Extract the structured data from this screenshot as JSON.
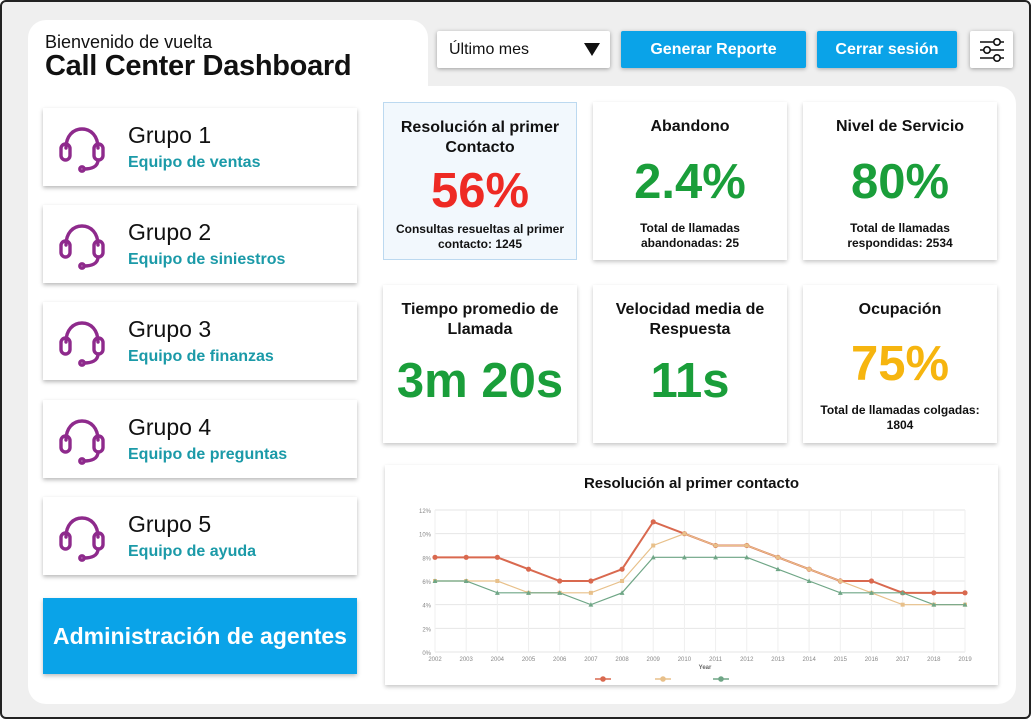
{
  "header": {
    "welcome": "Bienvenido de vuelta",
    "title": "Call Center Dashboard"
  },
  "toolbar": {
    "period_selected": "Último mes",
    "report_label": "Generar Reporte",
    "logout_label": "Cerrar sesión",
    "filter_icon": "sliders-icon"
  },
  "groups": [
    {
      "name": "Grupo 1",
      "team": "Equipo de ventas"
    },
    {
      "name": "Grupo 2",
      "team": "Equipo de siniestros"
    },
    {
      "name": "Grupo 3",
      "team": "Equipo de finanzas"
    },
    {
      "name": "Grupo 4",
      "team": "Equipo de preguntas"
    },
    {
      "name": "Grupo 5",
      "team": "Equipo de ayuda"
    }
  ],
  "admin_label": "Administración de agentes",
  "kpis": [
    {
      "title": "Resolución al primer Contacto",
      "value": "56%",
      "detail": "Consultas resueltas al primer contacto: 1245",
      "color": "#ee2a24"
    },
    {
      "title": "Abandono",
      "value": "2.4%",
      "detail": "Total de llamadas abandonadas: 25",
      "color": "#1a9e3a"
    },
    {
      "title": "Nivel de Servicio",
      "value": "80%",
      "detail": "Total de llamadas respondidas: 2534",
      "color": "#1a9e3a"
    },
    {
      "title": "Tiempo promedio de Llamada",
      "value": "3m 20s",
      "detail": "",
      "color": "#1a9e3a"
    },
    {
      "title": "Velocidad media de Respuesta",
      "value": "11s",
      "detail": "",
      "color": "#1a9e3a"
    },
    {
      "title": "Ocupación",
      "value": "75%",
      "detail": "Total de llamadas colgadas: 1804",
      "color": "#f6b50f"
    }
  ],
  "colors": {
    "accent": "#0aa3e8",
    "team_text": "#1b9aa8",
    "headset": "#8e2a8c"
  },
  "chart_data": {
    "type": "line",
    "title": "Resolución al primer contacto",
    "xlabel": "Year",
    "ylabel": "",
    "x": [
      "2002",
      "2003",
      "2004",
      "2005",
      "2006",
      "2007",
      "2008",
      "2009",
      "2010",
      "2011",
      "2012",
      "2013",
      "2014",
      "2015",
      "2016",
      "2017",
      "2018",
      "2019"
    ],
    "y_ticks": [
      "0%",
      "2%",
      "4%",
      "6%",
      "8%",
      "10%",
      "12%"
    ],
    "ylim": [
      0,
      12
    ],
    "series": [
      {
        "color": "#d9694f",
        "values": [
          8,
          8,
          8,
          7,
          6,
          6,
          7,
          11,
          10,
          9,
          9,
          8,
          7,
          6,
          6,
          5,
          5,
          5
        ]
      },
      {
        "color": "#e8c08a",
        "values": [
          6,
          6,
          6,
          5,
          5,
          5,
          6,
          9,
          10,
          9,
          9,
          8,
          7,
          6,
          5,
          4,
          4,
          4
        ]
      },
      {
        "color": "#6fa686",
        "values": [
          6,
          6,
          5,
          5,
          5,
          4,
          5,
          8,
          8,
          8,
          8,
          7,
          6,
          5,
          5,
          5,
          4,
          4
        ]
      }
    ],
    "grid": true,
    "legend": "bottom"
  }
}
